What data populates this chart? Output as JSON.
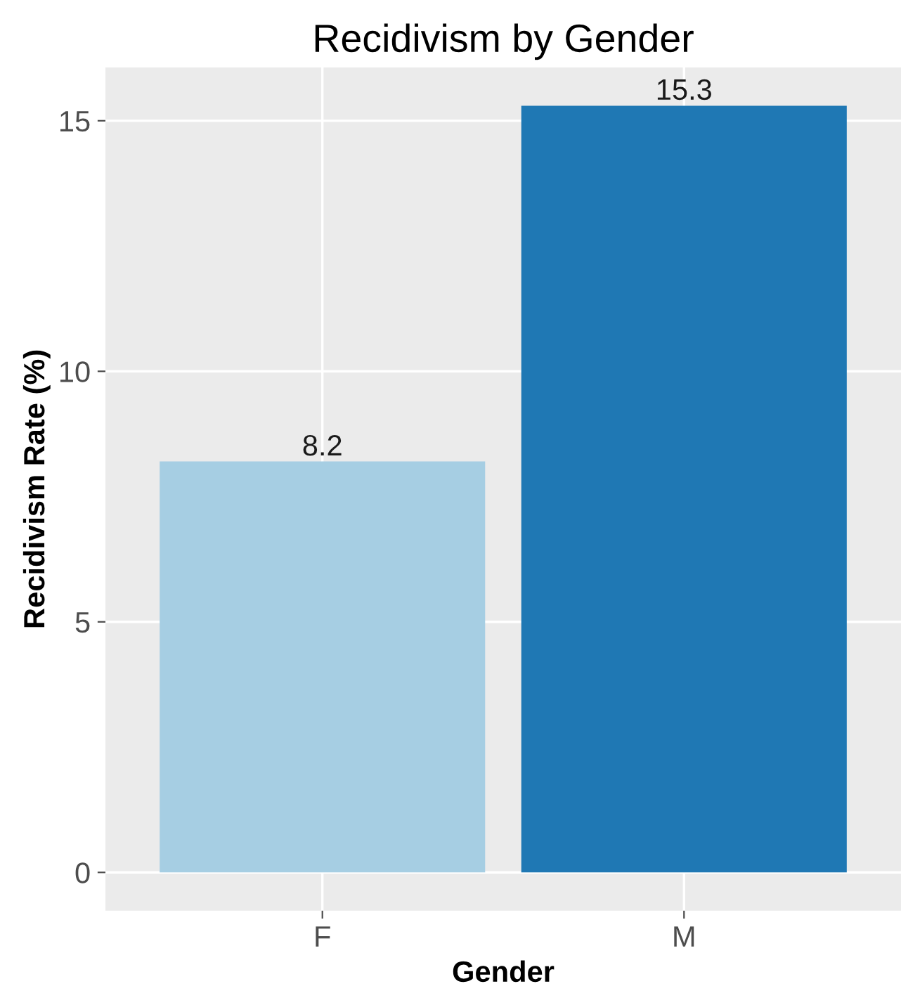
{
  "chart_data": {
    "type": "bar",
    "title": "Recidivism by Gender",
    "xlabel": "Gender",
    "ylabel": "Recidivism Rate (%)",
    "categories": [
      "F",
      "M"
    ],
    "values": [
      8.2,
      15.3
    ],
    "colors": [
      "#a6cee3",
      "#1f78b4"
    ],
    "ylim": [
      -0.765,
      16.065
    ],
    "yticks": [
      0,
      5,
      10,
      15
    ],
    "grid": true,
    "data_labels": true
  }
}
